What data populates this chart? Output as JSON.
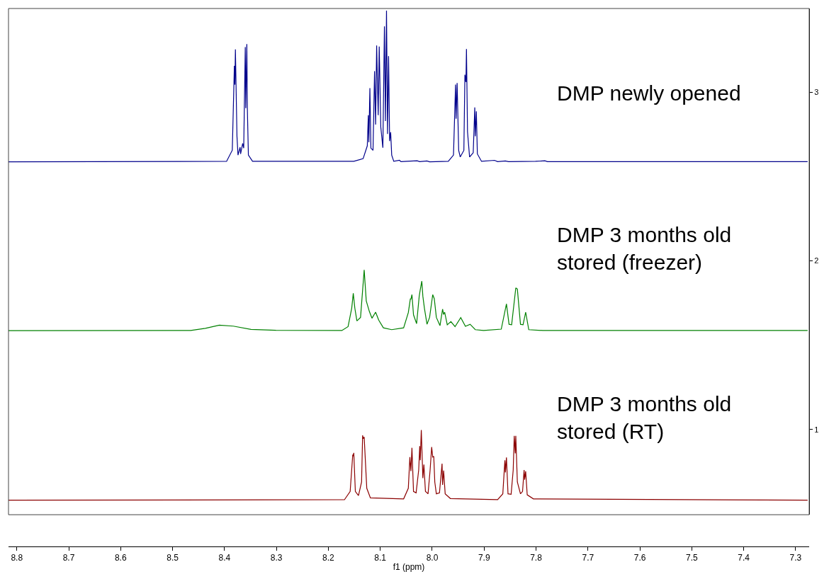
{
  "chart_data": {
    "type": "line",
    "xlabel": "f1 (ppm)",
    "xlim": [
      8.816,
      7.274
    ],
    "ylim": [
      0.494,
      3.498
    ],
    "xticks": [
      8.8,
      8.7,
      8.6,
      8.5,
      8.4,
      8.3,
      8.2,
      8.1,
      {
        "value": 8.0,
        "label": "8.0"
      },
      7.9,
      7.8,
      7.7,
      7.6,
      7.5,
      7.4,
      7.3
    ],
    "yticks": [
      1,
      2,
      3
    ],
    "legend": false,
    "marker": "none",
    "line_style": "solid",
    "series": [
      {
        "name": "DMP newly opened",
        "color": "#00008b",
        "x": [
          8.816,
          8.396,
          8.385,
          8.381,
          8.38,
          8.379,
          8.376,
          8.374,
          8.37,
          8.369,
          8.365,
          8.363,
          8.36,
          8.359,
          8.357,
          8.356,
          8.354,
          8.346,
          8.151,
          8.133,
          8.125,
          8.123,
          8.122,
          8.12,
          8.118,
          8.114,
          8.111,
          8.109,
          8.107,
          8.104,
          8.102,
          8.099,
          8.095,
          8.092,
          8.09,
          8.088,
          8.086,
          8.084,
          8.082,
          8.08,
          8.078,
          8.074,
          8.063,
          8.06,
          8.049,
          8.029,
          8.024,
          8.01,
          8.005,
          7.969,
          7.959,
          7.955,
          7.954,
          7.952,
          7.949,
          7.946,
          7.939,
          7.937,
          7.935,
          7.934,
          7.932,
          7.928,
          7.921,
          7.918,
          7.917,
          7.915,
          7.913,
          7.905,
          7.88,
          7.874,
          7.859,
          7.853,
          7.801,
          7.783,
          7.778,
          7.277
        ],
        "values": [
          2.588,
          2.591,
          2.657,
          3.158,
          3.046,
          3.255,
          2.74,
          2.628,
          2.675,
          2.635,
          2.697,
          2.669,
          3.269,
          2.907,
          3.287,
          2.907,
          2.628,
          2.591,
          2.591,
          2.607,
          2.683,
          2.865,
          2.704,
          3.025,
          2.669,
          2.656,
          3.126,
          2.809,
          3.279,
          2.865,
          3.272,
          2.795,
          2.672,
          3.392,
          2.83,
          3.485,
          2.753,
          3.216,
          2.711,
          2.764,
          2.628,
          2.591,
          2.597,
          2.589,
          2.591,
          2.594,
          2.589,
          2.593,
          2.588,
          2.591,
          2.628,
          3.046,
          2.844,
          3.056,
          2.656,
          2.617,
          2.656,
          3.105,
          3.061,
          3.258,
          2.767,
          2.617,
          2.642,
          2.911,
          2.74,
          2.888,
          2.635,
          2.591,
          2.597,
          2.589,
          2.593,
          2.589,
          2.591,
          2.594,
          2.589,
          2.589
        ]
      },
      {
        "name": "DMP 3 months old\nstored (freezer)",
        "color": "#008000",
        "x": [
          8.816,
          8.465,
          8.437,
          8.41,
          8.383,
          8.349,
          8.301,
          8.174,
          8.162,
          8.155,
          8.152,
          8.149,
          8.145,
          8.138,
          8.131,
          8.127,
          8.121,
          8.116,
          8.109,
          8.103,
          8.094,
          8.078,
          8.055,
          8.046,
          8.042,
          8.041,
          8.039,
          8.036,
          8.03,
          8.025,
          8.023,
          8.02,
          8.018,
          8.015,
          8.01,
          8.005,
          7.999,
          7.996,
          7.992,
          7.985,
          7.98,
          7.978,
          7.976,
          7.971,
          7.964,
          7.956,
          7.945,
          7.936,
          7.927,
          7.917,
          7.901,
          7.867,
          7.857,
          7.852,
          7.847,
          7.839,
          7.836,
          7.83,
          7.825,
          7.82,
          7.814,
          7.787,
          7.277
        ],
        "values": [
          1.586,
          1.587,
          1.6,
          1.619,
          1.613,
          1.594,
          1.588,
          1.587,
          1.61,
          1.72,
          1.808,
          1.72,
          1.644,
          1.665,
          1.947,
          1.763,
          1.7,
          1.66,
          1.696,
          1.649,
          1.603,
          1.592,
          1.603,
          1.693,
          1.776,
          1.772,
          1.8,
          1.68,
          1.628,
          1.791,
          1.829,
          1.88,
          1.791,
          1.72,
          1.624,
          1.665,
          1.8,
          1.776,
          1.665,
          1.616,
          1.714,
          1.682,
          1.696,
          1.621,
          1.64,
          1.61,
          1.664,
          1.612,
          1.624,
          1.592,
          1.587,
          1.595,
          1.745,
          1.624,
          1.621,
          1.84,
          1.833,
          1.624,
          1.621,
          1.696,
          1.592,
          1.587,
          1.587
        ]
      },
      {
        "name": "DMP 3 months old\nstored (RT)",
        "color": "#8b0000",
        "x": [
          8.816,
          8.169,
          8.158,
          8.153,
          8.152,
          8.151,
          8.148,
          8.142,
          8.136,
          8.134,
          8.133,
          8.131,
          8.126,
          8.119,
          8.055,
          8.046,
          8.043,
          8.041,
          8.039,
          8.036,
          8.031,
          8.026,
          8.024,
          8.023,
          8.021,
          8.018,
          8.016,
          8.013,
          8.008,
          8.004,
          8.001,
          7.999,
          7.997,
          7.995,
          7.992,
          7.986,
          7.981,
          7.98,
          7.978,
          7.975,
          7.965,
          7.874,
          7.864,
          7.86,
          7.859,
          7.857,
          7.854,
          7.848,
          7.844,
          7.842,
          7.84,
          7.839,
          7.836,
          7.83,
          7.826,
          7.823,
          7.822,
          7.82,
          7.817,
          7.805,
          7.277
        ],
        "values": [
          0.58,
          0.583,
          0.632,
          0.851,
          0.842,
          0.861,
          0.632,
          0.608,
          0.688,
          0.965,
          0.946,
          0.955,
          0.651,
          0.594,
          0.588,
          0.651,
          0.836,
          0.752,
          0.891,
          0.632,
          0.624,
          0.759,
          0.901,
          0.817,
          0.997,
          0.711,
          0.792,
          0.632,
          0.618,
          0.759,
          0.896,
          0.836,
          0.84,
          0.688,
          0.618,
          0.624,
          0.797,
          0.671,
          0.756,
          0.618,
          0.59,
          0.583,
          0.618,
          0.817,
          0.745,
          0.834,
          0.618,
          0.615,
          0.759,
          0.962,
          0.858,
          0.962,
          0.688,
          0.618,
          0.632,
          0.759,
          0.702,
          0.752,
          0.612,
          0.588,
          0.58
        ]
      }
    ]
  }
}
